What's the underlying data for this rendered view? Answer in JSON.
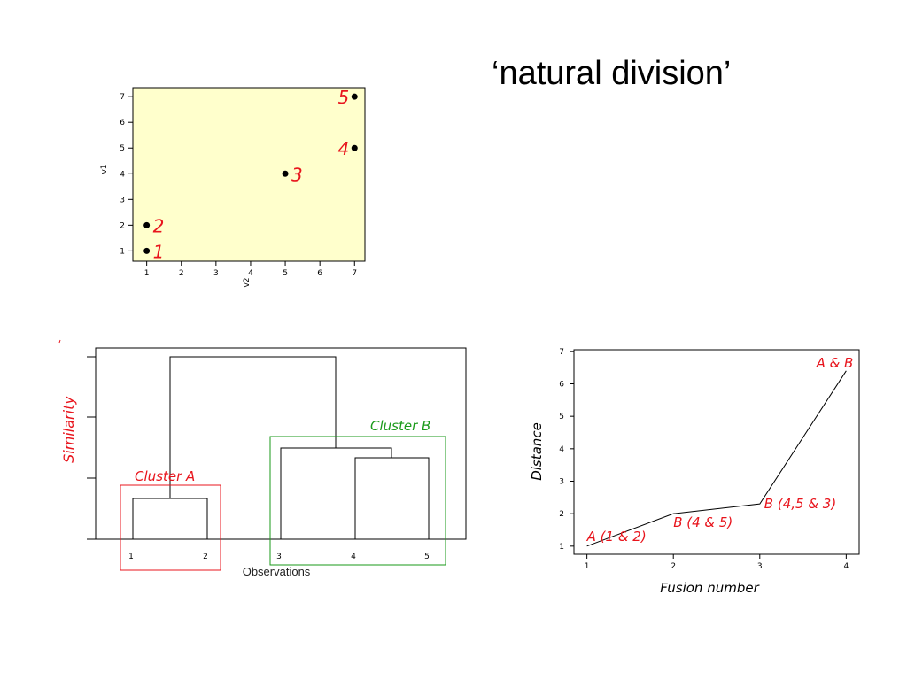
{
  "title": "‘natural division’",
  "colors": {
    "plot_bg": "#ffffcc",
    "label_red": "#e8141c",
    "cluster_b": "#1a9a1a"
  },
  "chart_data": [
    {
      "type": "scatter",
      "xlabel": "v2",
      "ylabel": "v1",
      "xlim": [
        0.6,
        7.3
      ],
      "ylim": [
        0.6,
        7.35
      ],
      "xticks": [
        "1",
        "2",
        "3",
        "4",
        "5",
        "6",
        "7"
      ],
      "yticks": [
        "1",
        "2",
        "3",
        "4",
        "5",
        "6",
        "7"
      ],
      "points": [
        {
          "label": "1",
          "x": 1,
          "y": 1
        },
        {
          "label": "2",
          "x": 1,
          "y": 2
        },
        {
          "label": "3",
          "x": 5,
          "y": 4
        },
        {
          "label": "4",
          "x": 7,
          "y": 5
        },
        {
          "label": "5",
          "x": 7,
          "y": 7
        }
      ]
    },
    {
      "type": "dendrogram",
      "xlabel": "Observations",
      "ylabel": "Similarity",
      "leaves": [
        "1",
        "2",
        "3",
        "4",
        "5"
      ],
      "clusters": [
        {
          "name": "Cluster A",
          "members": [
            "1",
            "2"
          ]
        },
        {
          "name": "Cluster B",
          "members": [
            "3",
            "4",
            "5"
          ]
        }
      ]
    },
    {
      "type": "line",
      "xlabel": "Fusion number",
      "ylabel": "Distance",
      "xlim": [
        0.85,
        4.15
      ],
      "ylim": [
        0.75,
        7.05
      ],
      "xticks": [
        "1",
        "2",
        "3",
        "4"
      ],
      "yticks": [
        "1",
        "2",
        "3",
        "4",
        "5",
        "6",
        "7"
      ],
      "x": [
        1,
        2,
        3,
        4
      ],
      "y": [
        1.0,
        2.0,
        2.3,
        6.4
      ],
      "annotations": [
        "A (1 & 2)",
        "B (4 & 5)",
        "B (4,5 & 3)",
        "A & B"
      ]
    }
  ]
}
